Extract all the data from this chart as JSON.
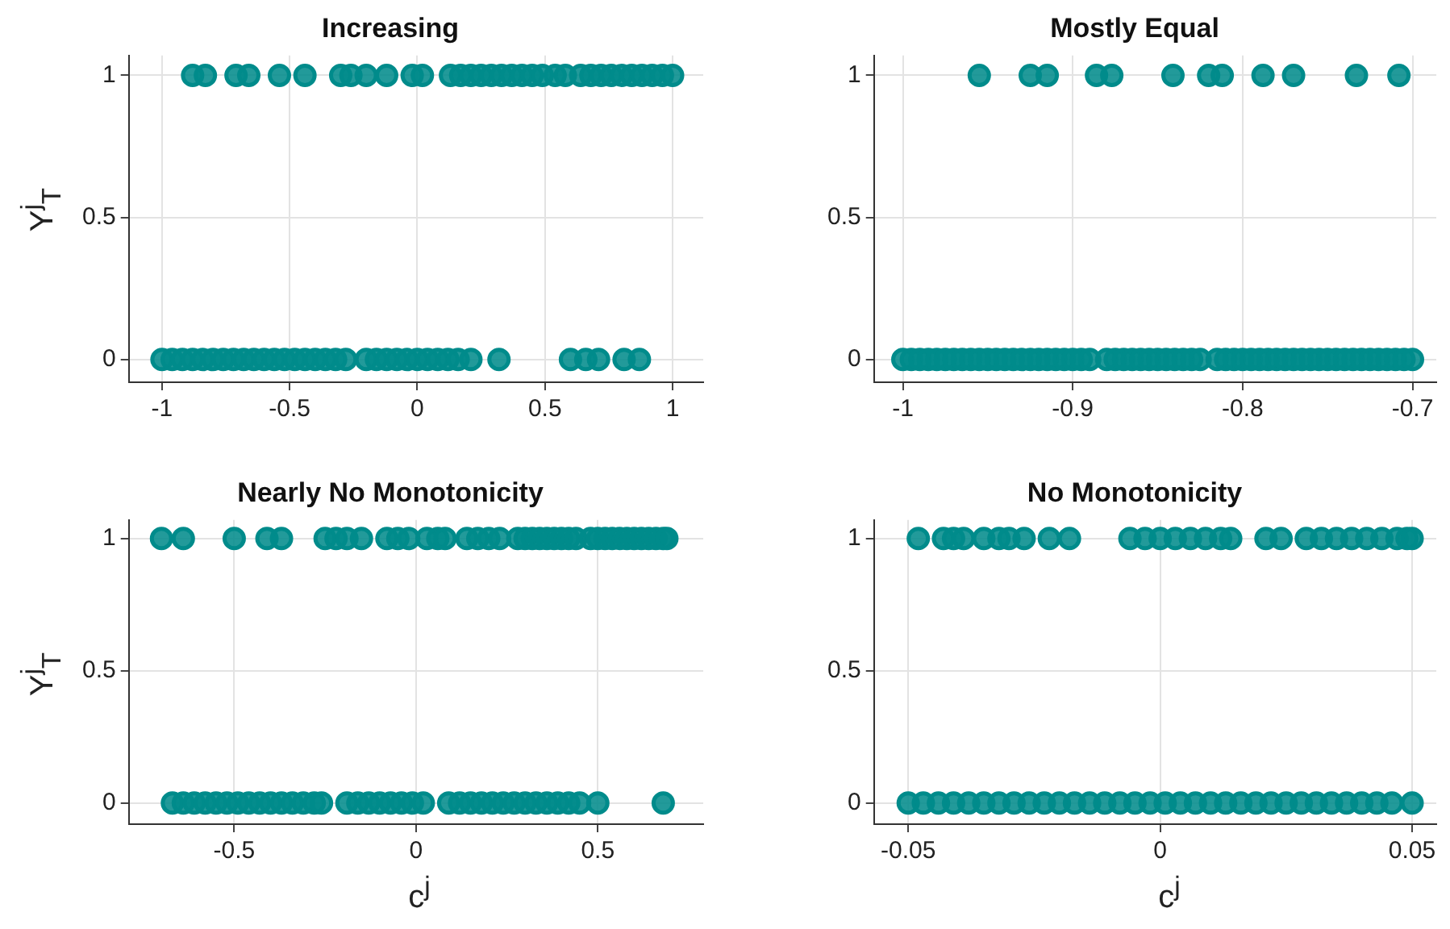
{
  "chart_data": [
    {
      "type": "scatter",
      "title": "Increasing",
      "ylabel": "Y$^{j}$$_{T}$",
      "color": "#008b8b",
      "marker": "circle",
      "grid": true,
      "xlim": [
        -1.13,
        1.12
      ],
      "ylim": [
        -0.08,
        1.07
      ],
      "xticks": [
        -1,
        -0.5,
        0,
        0.5,
        1
      ],
      "yticks": [
        0,
        0.5,
        1
      ],
      "x": [
        -0.88,
        -0.83,
        -0.71,
        -0.66,
        -0.54,
        -0.44,
        -0.3,
        -0.26,
        -0.2,
        -0.12,
        -0.02,
        0.02,
        0.13,
        0.17,
        0.21,
        0.25,
        0.29,
        0.33,
        0.37,
        0.41,
        0.45,
        0.49,
        0.54,
        0.58,
        0.64,
        0.68,
        0.72,
        0.76,
        0.8,
        0.84,
        0.88,
        0.92,
        0.96,
        1.0,
        -1.0,
        -0.96,
        -0.92,
        -0.88,
        -0.84,
        -0.8,
        -0.76,
        -0.72,
        -0.68,
        -0.64,
        -0.6,
        -0.56,
        -0.52,
        -0.48,
        -0.44,
        -0.4,
        -0.36,
        -0.32,
        -0.28,
        -0.2,
        -0.16,
        -0.12,
        -0.08,
        -0.04,
        0.0,
        0.04,
        0.08,
        0.12,
        0.16,
        0.21,
        0.32,
        0.6,
        0.66,
        0.71,
        0.81,
        0.87
      ],
      "values": [
        1,
        1,
        1,
        1,
        1,
        1,
        1,
        1,
        1,
        1,
        1,
        1,
        1,
        1,
        1,
        1,
        1,
        1,
        1,
        1,
        1,
        1,
        1,
        1,
        1,
        1,
        1,
        1,
        1,
        1,
        1,
        1,
        1,
        1,
        0,
        0,
        0,
        0,
        0,
        0,
        0,
        0,
        0,
        0,
        0,
        0,
        0,
        0,
        0,
        0,
        0,
        0,
        0,
        0,
        0,
        0,
        0,
        0,
        0,
        0,
        0,
        0,
        0,
        0,
        0,
        0,
        0,
        0,
        0,
        0
      ]
    },
    {
      "type": "scatter",
      "title": "Mostly Equal",
      "color": "#008b8b",
      "marker": "circle",
      "grid": true,
      "xlim": [
        -1.017,
        -0.686
      ],
      "ylim": [
        -0.08,
        1.07
      ],
      "xticks": [
        -1,
        -0.9,
        -0.8,
        -0.7
      ],
      "yticks": [
        0,
        0.5,
        1
      ],
      "x": [
        -0.955,
        -0.925,
        -0.915,
        -0.886,
        -0.877,
        -0.841,
        -0.82,
        -0.812,
        -0.788,
        -0.77,
        -0.733,
        -0.708,
        -1.0,
        -0.995,
        -0.99,
        -0.985,
        -0.98,
        -0.975,
        -0.97,
        -0.965,
        -0.96,
        -0.955,
        -0.95,
        -0.945,
        -0.94,
        -0.935,
        -0.93,
        -0.925,
        -0.92,
        -0.915,
        -0.91,
        -0.905,
        -0.9,
        -0.895,
        -0.89,
        -0.88,
        -0.875,
        -0.87,
        -0.865,
        -0.86,
        -0.855,
        -0.85,
        -0.845,
        -0.84,
        -0.835,
        -0.83,
        -0.825,
        -0.815,
        -0.81,
        -0.805,
        -0.8,
        -0.795,
        -0.79,
        -0.785,
        -0.78,
        -0.775,
        -0.77,
        -0.765,
        -0.76,
        -0.755,
        -0.75,
        -0.745,
        -0.74,
        -0.735,
        -0.73,
        -0.725,
        -0.72,
        -0.715,
        -0.71,
        -0.705,
        -0.7
      ],
      "values": [
        1,
        1,
        1,
        1,
        1,
        1,
        1,
        1,
        1,
        1,
        1,
        1,
        0,
        0,
        0,
        0,
        0,
        0,
        0,
        0,
        0,
        0,
        0,
        0,
        0,
        0,
        0,
        0,
        0,
        0,
        0,
        0,
        0,
        0,
        0,
        0,
        0,
        0,
        0,
        0,
        0,
        0,
        0,
        0,
        0,
        0,
        0,
        0,
        0,
        0,
        0,
        0,
        0,
        0,
        0,
        0,
        0,
        0,
        0,
        0,
        0,
        0,
        0,
        0,
        0,
        0,
        0,
        0,
        0,
        0,
        0
      ]
    },
    {
      "type": "scatter",
      "title": "Nearly No Monotonicity",
      "xlabel": "c$^{j}$",
      "ylabel": "Y$^{j}$$_{T}$",
      "color": "#008b8b",
      "marker": "circle",
      "grid": true,
      "xlim": [
        -0.79,
        0.79
      ],
      "ylim": [
        -0.08,
        1.07
      ],
      "xticks": [
        -0.5,
        0,
        0.5
      ],
      "yticks": [
        0,
        0.5,
        1
      ],
      "x": [
        -0.7,
        -0.64,
        -0.5,
        -0.41,
        -0.37,
        -0.25,
        -0.22,
        -0.19,
        -0.15,
        -0.08,
        -0.05,
        -0.02,
        0.03,
        0.06,
        0.08,
        0.14,
        0.17,
        0.2,
        0.23,
        0.28,
        0.3,
        0.32,
        0.34,
        0.36,
        0.38,
        0.4,
        0.42,
        0.44,
        0.48,
        0.5,
        0.52,
        0.54,
        0.56,
        0.58,
        0.6,
        0.62,
        0.64,
        0.66,
        0.68,
        0.69,
        -0.67,
        -0.64,
        -0.61,
        -0.58,
        -0.55,
        -0.52,
        -0.49,
        -0.46,
        -0.43,
        -0.4,
        -0.37,
        -0.34,
        -0.31,
        -0.28,
        -0.26,
        -0.19,
        -0.16,
        -0.13,
        -0.1,
        -0.07,
        -0.04,
        -0.01,
        0.02,
        0.09,
        0.12,
        0.15,
        0.18,
        0.21,
        0.24,
        0.27,
        0.3,
        0.33,
        0.36,
        0.39,
        0.42,
        0.45,
        0.5,
        0.68
      ],
      "values": [
        1,
        1,
        1,
        1,
        1,
        1,
        1,
        1,
        1,
        1,
        1,
        1,
        1,
        1,
        1,
        1,
        1,
        1,
        1,
        1,
        1,
        1,
        1,
        1,
        1,
        1,
        1,
        1,
        1,
        1,
        1,
        1,
        1,
        1,
        1,
        1,
        1,
        1,
        1,
        1,
        0,
        0,
        0,
        0,
        0,
        0,
        0,
        0,
        0,
        0,
        0,
        0,
        0,
        0,
        0,
        0,
        0,
        0,
        0,
        0,
        0,
        0,
        0,
        0,
        0,
        0,
        0,
        0,
        0,
        0,
        0,
        0,
        0,
        0,
        0,
        0,
        0,
        0
      ]
    },
    {
      "type": "scatter",
      "title": "No Monotonicity",
      "xlabel": "c$^{j}$",
      "color": "#008b8b",
      "marker": "circle",
      "grid": true,
      "xlim": [
        -0.0568,
        0.0548
      ],
      "ylim": [
        -0.08,
        1.07
      ],
      "xticks": [
        -0.05,
        0,
        0.05
      ],
      "yticks": [
        0,
        0.5,
        1
      ],
      "x": [
        -0.048,
        -0.043,
        -0.041,
        -0.039,
        -0.035,
        -0.032,
        -0.03,
        -0.027,
        -0.022,
        -0.018,
        -0.006,
        -0.003,
        0,
        0.003,
        0.006,
        0.009,
        0.012,
        0.014,
        0.021,
        0.024,
        0.029,
        0.032,
        0.035,
        0.038,
        0.041,
        0.044,
        0.047,
        0.049,
        0.05,
        -0.05,
        -0.047,
        -0.044,
        -0.041,
        -0.038,
        -0.035,
        -0.032,
        -0.029,
        -0.026,
        -0.023,
        -0.02,
        -0.017,
        -0.014,
        -0.011,
        -0.008,
        -0.005,
        -0.002,
        0.001,
        0.004,
        0.007,
        0.01,
        0.013,
        0.016,
        0.019,
        0.022,
        0.025,
        0.028,
        0.031,
        0.034,
        0.037,
        0.04,
        0.043,
        0.046,
        0.05
      ],
      "values": [
        1,
        1,
        1,
        1,
        1,
        1,
        1,
        1,
        1,
        1,
        1,
        1,
        1,
        1,
        1,
        1,
        1,
        1,
        1,
        1,
        1,
        1,
        1,
        1,
        1,
        1,
        1,
        1,
        1,
        0,
        0,
        0,
        0,
        0,
        0,
        0,
        0,
        0,
        0,
        0,
        0,
        0,
        0,
        0,
        0,
        0,
        0,
        0,
        0,
        0,
        0,
        0,
        0,
        0,
        0,
        0,
        0,
        0,
        0,
        0,
        0,
        0,
        0
      ]
    }
  ]
}
